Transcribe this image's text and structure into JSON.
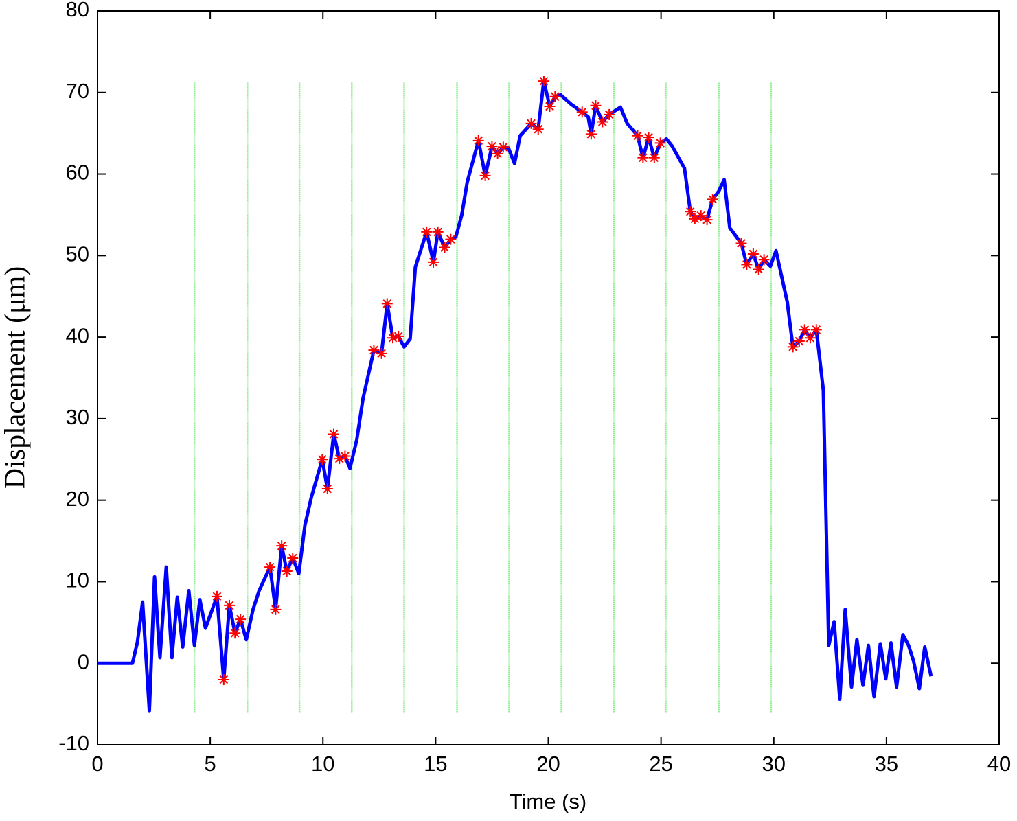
{
  "chart_data": {
    "type": "line",
    "xlabel": "Time (s)",
    "ylabel": "Displacement (μm)",
    "xlim": [
      0,
      40
    ],
    "xticks": [
      0,
      5,
      10,
      15,
      20,
      25,
      30,
      35,
      40
    ],
    "ylim": [
      -10,
      80
    ],
    "yticks": [
      -10,
      0,
      10,
      20,
      30,
      40,
      50,
      60,
      70,
      80
    ],
    "grid": false,
    "vlines": [
      4.3,
      6.65,
      8.96,
      11.28,
      13.6,
      15.95,
      18.26,
      20.58,
      22.9,
      25.21,
      27.56,
      29.88
    ],
    "vline_ylim": [
      -6.0,
      71.2
    ],
    "vline_color": "#90ee90",
    "series": [
      {
        "color": "#0000ff",
        "line": true,
        "marker": "none",
        "x": [
          0,
          1.55,
          1.77,
          2.0,
          2.3,
          2.53,
          2.77,
          3.05,
          3.3,
          3.54,
          3.78,
          4.05,
          4.3,
          4.54,
          4.79,
          5.3,
          5.6,
          5.85,
          6.1,
          6.34,
          6.6,
          6.9,
          7.17,
          7.65,
          7.9,
          8.17,
          8.4,
          8.66,
          8.93,
          9.2,
          9.48,
          9.97,
          10.2,
          10.48,
          10.73,
          10.98,
          11.2,
          11.5,
          11.78,
          12.26,
          12.6,
          12.85,
          13.1,
          13.35,
          13.6,
          13.87,
          14.1,
          14.6,
          14.9,
          15.1,
          15.4,
          15.67,
          15.9,
          16.16,
          16.4,
          16.9,
          17.2,
          17.5,
          17.75,
          18.0,
          18.23,
          18.5,
          18.75,
          19.24,
          19.55,
          19.8,
          20.06,
          20.3,
          20.55,
          21.04,
          21.5,
          21.77,
          21.9,
          22.1,
          22.4,
          22.7,
          23.2,
          23.5,
          23.96,
          24.2,
          24.45,
          24.7,
          24.97,
          25.24,
          25.5,
          26.04,
          26.3,
          26.5,
          26.77,
          27.04,
          27.29,
          27.56,
          27.8,
          28.05,
          28.56,
          28.8,
          29.09,
          29.33,
          29.57,
          29.85,
          30.1,
          30.6,
          30.85,
          31.13,
          31.37,
          31.62,
          31.89,
          32.2,
          32.44,
          32.68,
          32.93,
          33.17,
          33.45,
          33.69,
          33.96,
          34.2,
          34.45,
          34.73,
          34.97,
          35.2,
          35.45,
          35.73,
          35.98,
          36.2,
          36.46,
          36.7,
          36.98
        ],
        "values": [
          0,
          0,
          2.6,
          7.5,
          -5.8,
          10.6,
          0.7,
          11.8,
          0.7,
          8.1,
          2.0,
          8.9,
          2.2,
          7.8,
          4.3,
          8.2,
          -2.0,
          7.1,
          3.7,
          5.4,
          2.9,
          6.6,
          8.9,
          11.8,
          6.6,
          14.4,
          11.3,
          12.9,
          11.0,
          16.9,
          20.3,
          25.0,
          21.4,
          28.1,
          25.1,
          25.4,
          23.9,
          27.4,
          32.5,
          38.4,
          38.0,
          44.1,
          39.9,
          40.1,
          38.8,
          39.8,
          48.6,
          52.9,
          49.2,
          52.9,
          51.0,
          52.0,
          52.3,
          55.0,
          59.0,
          64.1,
          59.8,
          63.4,
          62.5,
          63.3,
          63.2,
          61.3,
          64.7,
          66.2,
          65.5,
          71.4,
          68.3,
          69.5,
          69.7,
          68.5,
          67.6,
          67.0,
          64.9,
          68.4,
          66.4,
          67.3,
          68.2,
          66.2,
          64.7,
          62.0,
          64.5,
          62.0,
          63.8,
          64.3,
          63.4,
          60.7,
          55.4,
          54.5,
          54.9,
          54.4,
          56.9,
          57.9,
          59.3,
          53.4,
          51.5,
          48.9,
          50.2,
          48.3,
          49.5,
          48.7,
          50.6,
          44.3,
          38.8,
          39.5,
          40.9,
          39.9,
          40.9,
          33.5,
          2.2,
          5.1,
          -4.4,
          6.6,
          -2.9,
          2.9,
          -2.7,
          2.2,
          -4.1,
          2.4,
          -1.9,
          2.5,
          -2.9,
          3.5,
          2.2,
          0.3,
          -3.1,
          2.0,
          -1.6
        ]
      },
      {
        "color": "#ff0000",
        "line": false,
        "marker": "asterisk",
        "x": [
          5.3,
          5.6,
          5.85,
          6.1,
          6.34,
          7.65,
          7.9,
          8.17,
          8.4,
          8.66,
          9.97,
          10.2,
          10.48,
          10.73,
          10.98,
          12.26,
          12.6,
          12.85,
          13.1,
          13.35,
          14.6,
          14.9,
          15.1,
          15.4,
          15.67,
          16.9,
          17.2,
          17.5,
          17.75,
          18.0,
          19.24,
          19.55,
          19.8,
          20.06,
          20.3,
          21.5,
          21.9,
          22.1,
          22.4,
          22.7,
          23.96,
          24.2,
          24.45,
          24.7,
          24.97,
          26.3,
          26.5,
          26.77,
          27.04,
          27.29,
          28.56,
          28.8,
          29.09,
          29.33,
          29.57,
          30.85,
          31.13,
          31.37,
          31.62,
          31.89
        ],
        "values": [
          8.2,
          -2.0,
          7.1,
          3.7,
          5.4,
          11.8,
          6.6,
          14.4,
          11.3,
          12.9,
          25.0,
          21.4,
          28.1,
          25.1,
          25.4,
          38.4,
          38.0,
          44.1,
          39.9,
          40.1,
          52.9,
          49.2,
          52.9,
          51.0,
          52.0,
          64.1,
          59.8,
          63.4,
          62.5,
          63.3,
          66.2,
          65.5,
          71.4,
          68.3,
          69.5,
          67.6,
          64.9,
          68.4,
          66.4,
          67.3,
          64.7,
          62.0,
          64.5,
          62.0,
          63.8,
          55.4,
          54.5,
          54.9,
          54.4,
          56.9,
          51.5,
          48.9,
          50.2,
          48.3,
          49.5,
          38.8,
          39.5,
          40.9,
          39.9,
          40.9
        ]
      }
    ]
  }
}
